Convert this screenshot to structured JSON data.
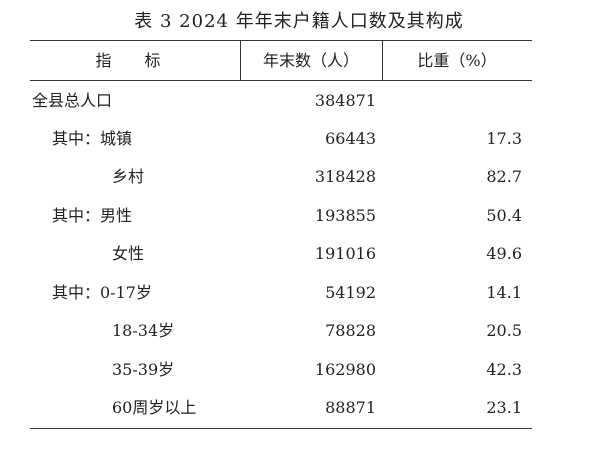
{
  "table": {
    "title": "表 3   2024 年年末户籍人口数及其构成",
    "headers": {
      "indicator": "指  标",
      "count": "年末数（人）",
      "share": "比重（%）"
    },
    "rows": [
      {
        "label": "全县总人口",
        "count": "384871",
        "share": ""
      },
      {
        "label": "其中：城镇",
        "count": "66443",
        "share": "17.3"
      },
      {
        "label": "乡村",
        "count": "318428",
        "share": "82.7"
      },
      {
        "label": "其中：男性",
        "count": "193855",
        "share": "50.4"
      },
      {
        "label": "女性",
        "count": "191016",
        "share": "49.6"
      },
      {
        "label": "其中：0-17岁",
        "count": "54192",
        "share": "14.1"
      },
      {
        "label": "18-34岁",
        "count": "78828",
        "share": "20.5"
      },
      {
        "label": "35-39岁",
        "count": "162980",
        "share": "42.3"
      },
      {
        "label": "60周岁以上",
        "count": "88871",
        "share": "23.1"
      }
    ]
  }
}
